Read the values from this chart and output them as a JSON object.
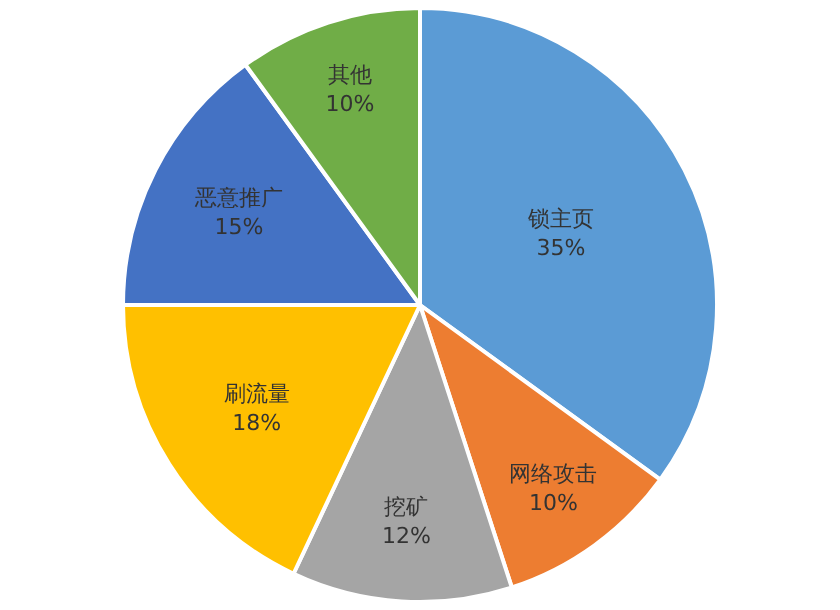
{
  "chart_data": {
    "type": "pie",
    "categories": [
      "锁主页",
      "网络攻击",
      "挖矿",
      "刷流量",
      "恶意推广",
      "其他"
    ],
    "values": [
      35,
      10,
      12,
      18,
      15,
      10
    ],
    "value_labels": [
      "35%",
      "10%",
      "12%",
      "18%",
      "15%",
      "10%"
    ],
    "colors": [
      "#5b9bd5",
      "#ed7d31",
      "#a5a5a5",
      "#ffc000",
      "#4472c4",
      "#70ad47"
    ],
    "legend": false
  }
}
